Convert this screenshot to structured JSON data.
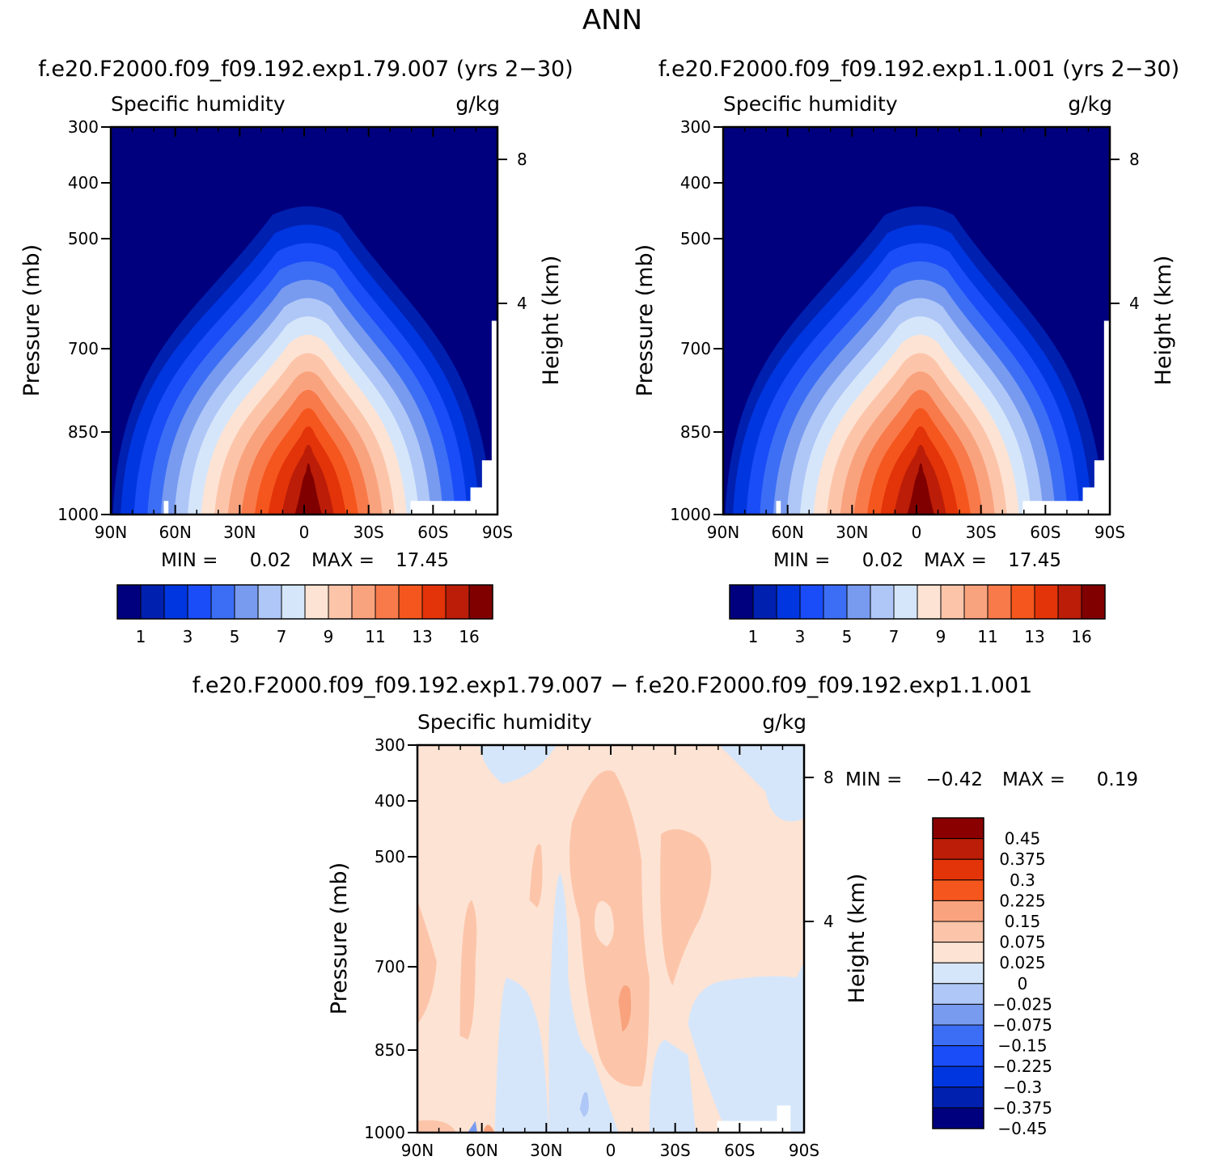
{
  "main_title": "ANN",
  "chart_data": [
    {
      "type": "contour",
      "title": "f.e20.F2000.f09_f09.192.exp1.79.007 (yrs 2−30)",
      "variable": "Specific humidity",
      "units": "g/kg",
      "ylabel": "Pressure (mb)",
      "ylabel_right": "Height (km)",
      "x_ticks": [
        "90N",
        "60N",
        "30N",
        "0",
        "30S",
        "60S",
        "90S"
      ],
      "y_ticks": [
        "300",
        "400",
        "500",
        "700",
        "850",
        "1000"
      ],
      "y_right_ticks": [
        "8",
        "4"
      ],
      "min_label": "MIN =",
      "min_value": "0.02",
      "max_label": "MAX =",
      "max_value": "17.45",
      "min": 0.02,
      "max": 17.45,
      "peak_lat": -2,
      "colorbar_labels": [
        "1",
        "3",
        "5",
        "7",
        "9",
        "11",
        "13",
        "16"
      ],
      "levels": [
        0.5,
        1,
        2,
        3,
        4,
        5,
        6,
        7,
        8,
        9,
        10,
        11,
        12,
        13,
        14,
        16
      ]
    },
    {
      "type": "contour",
      "title": "f.e20.F2000.f09_f09.192.exp1.1.001 (yrs 2−30)",
      "variable": "Specific humidity",
      "units": "g/kg",
      "ylabel": "Pressure (mb)",
      "ylabel_right": "Height (km)",
      "x_ticks": [
        "90N",
        "60N",
        "30N",
        "0",
        "30S",
        "60S",
        "90S"
      ],
      "y_ticks": [
        "300",
        "400",
        "500",
        "700",
        "850",
        "1000"
      ],
      "y_right_ticks": [
        "8",
        "4"
      ],
      "min_label": "MIN =",
      "min_value": "0.02",
      "max_label": "MAX =",
      "max_value": "17.45",
      "min": 0.02,
      "max": 17.45,
      "peak_lat": -2,
      "colorbar_labels": [
        "1",
        "3",
        "5",
        "7",
        "9",
        "11",
        "13",
        "16"
      ],
      "levels": [
        0.5,
        1,
        2,
        3,
        4,
        5,
        6,
        7,
        8,
        9,
        10,
        11,
        12,
        13,
        14,
        16
      ]
    },
    {
      "type": "contour_difference",
      "title": "f.e20.F2000.f09_f09.192.exp1.79.007 − f.e20.F2000.f09_f09.192.exp1.1.001",
      "variable": "Specific humidity",
      "units": "g/kg",
      "ylabel": "Pressure (mb)",
      "ylabel_right": "Height (km)",
      "x_ticks": [
        "90N",
        "60N",
        "30N",
        "0",
        "30S",
        "60S",
        "90S"
      ],
      "y_ticks": [
        "300",
        "400",
        "500",
        "700",
        "850",
        "1000"
      ],
      "y_right_ticks": [
        "8",
        "4"
      ],
      "min_label": "MIN =",
      "min_value": "−0.42",
      "max_label": "MAX =",
      "max_value": "0.19",
      "min": -0.42,
      "max": 0.19,
      "colorbar_labels": [
        "0.45",
        "0.375",
        "0.3",
        "0.225",
        "0.15",
        "0.075",
        "0.025",
        "0",
        "−0.025",
        "−0.075",
        "−0.15",
        "−0.225",
        "−0.3",
        "−0.375",
        "−0.45"
      ]
    }
  ],
  "colors": {
    "abs_palette": [
      "#00007f",
      "#0020b0",
      "#0036e0",
      "#1a4cf8",
      "#3c6ef5",
      "#789bf0",
      "#afc7f7",
      "#d6e6fa",
      "#fde3d3",
      "#fcc5aa",
      "#f9a37e",
      "#f87a4a",
      "#f5561d",
      "#e33309",
      "#bb1d08",
      "#800000"
    ],
    "diff_palette": [
      "#8a0000",
      "#bb1d08",
      "#e33309",
      "#f5561d",
      "#f9a37e",
      "#fcc5aa",
      "#fde3d3",
      "#d6e6fa",
      "#afc7f7",
      "#789bf0",
      "#3c6ef5",
      "#1a4cf8",
      "#0036e0",
      "#0020b0",
      "#00007f"
    ]
  }
}
